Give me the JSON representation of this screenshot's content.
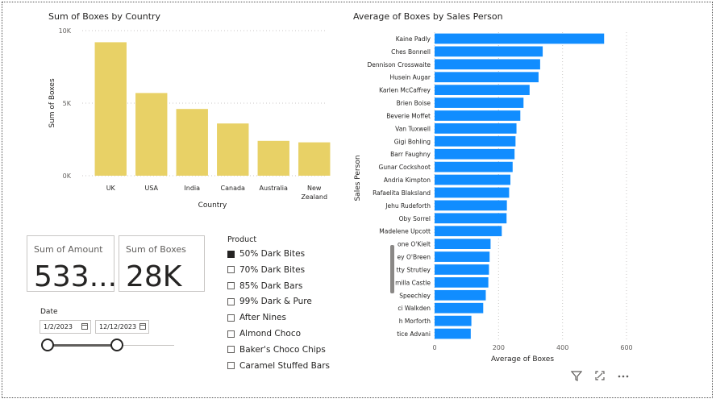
{
  "country_chart": {
    "title": "Sum of Boxes by Country",
    "ylabel": "Sum of Boxes",
    "xlabel": "Country"
  },
  "sales_chart": {
    "title": "Average of Boxes by Sales Person",
    "ylabel": "Sales Person",
    "xlabel": "Average of Boxes"
  },
  "card_amount": {
    "label": "Sum of Amount",
    "value": "533...."
  },
  "card_boxes": {
    "label": "Sum of Boxes",
    "value": "28K"
  },
  "date_slicer": {
    "title": "Date",
    "start": "1/2/2023",
    "end": "12/12/2023",
    "range_start_fraction": 0.0,
    "range_end_fraction": 1.0
  },
  "product_slicer": {
    "title": "Product",
    "items": [
      {
        "label": "50% Dark Bites",
        "checked": true
      },
      {
        "label": "70% Dark Bites",
        "checked": false
      },
      {
        "label": "85% Dark Bars",
        "checked": false
      },
      {
        "label": "99% Dark & Pure",
        "checked": false
      },
      {
        "label": "After Nines",
        "checked": false
      },
      {
        "label": "Almond Choco",
        "checked": false
      },
      {
        "label": "Baker's Choco Chips",
        "checked": false
      },
      {
        "label": "Caramel Stuffed Bars",
        "checked": false
      }
    ]
  },
  "visual_header_icons": [
    "filter-icon",
    "focus-mode-icon",
    "more-options-icon"
  ],
  "chart_data": [
    {
      "type": "bar",
      "title": "Sum of Boxes by Country",
      "xlabel": "Country",
      "ylabel": "Sum of Boxes",
      "categories": [
        "UK",
        "USA",
        "India",
        "Canada",
        "Australia",
        "New Zealand"
      ],
      "values": [
        9200,
        5700,
        4600,
        3600,
        2400,
        2300
      ],
      "ylim": [
        0,
        10000
      ],
      "yticks": [
        "0K",
        "5K",
        "10K"
      ],
      "color": "#E8D166",
      "grid": true
    },
    {
      "type": "bar",
      "orientation": "horizontal",
      "title": "Average of Boxes by Sales Person",
      "xlabel": "Average of Boxes",
      "ylabel": "Sales Person",
      "categories": [
        "Kaine Padly",
        "Ches Bonnell",
        "Dennison Crosswaite",
        "Husein Augar",
        "Karlen McCaffrey",
        "Brien Boise",
        "Beverie Moffet",
        "Van Tuxwell",
        "Gigi Bohling",
        "Barr Faughny",
        "Gunar Cockshoot",
        "Andria Kimpton",
        "Rafaelita Blaksland",
        "Jehu Rudeforth",
        "Oby Sorrel",
        "Madelene Upcott",
        "one O'Kielt",
        "ey O'Breen",
        "tty Strutley",
        "milla Castle",
        "Speechley",
        "ci Walkden",
        "h Morforth",
        "tice Advani"
      ],
      "values": [
        530,
        338,
        330,
        325,
        297,
        278,
        268,
        256,
        253,
        250,
        244,
        237,
        233,
        226,
        225,
        210,
        175,
        172,
        170,
        168,
        160,
        152,
        115,
        113
      ],
      "xlim": [
        0,
        600
      ],
      "xticks": [
        "0",
        "200",
        "400",
        "600"
      ],
      "color": "#118DFF",
      "grid": true
    }
  ]
}
